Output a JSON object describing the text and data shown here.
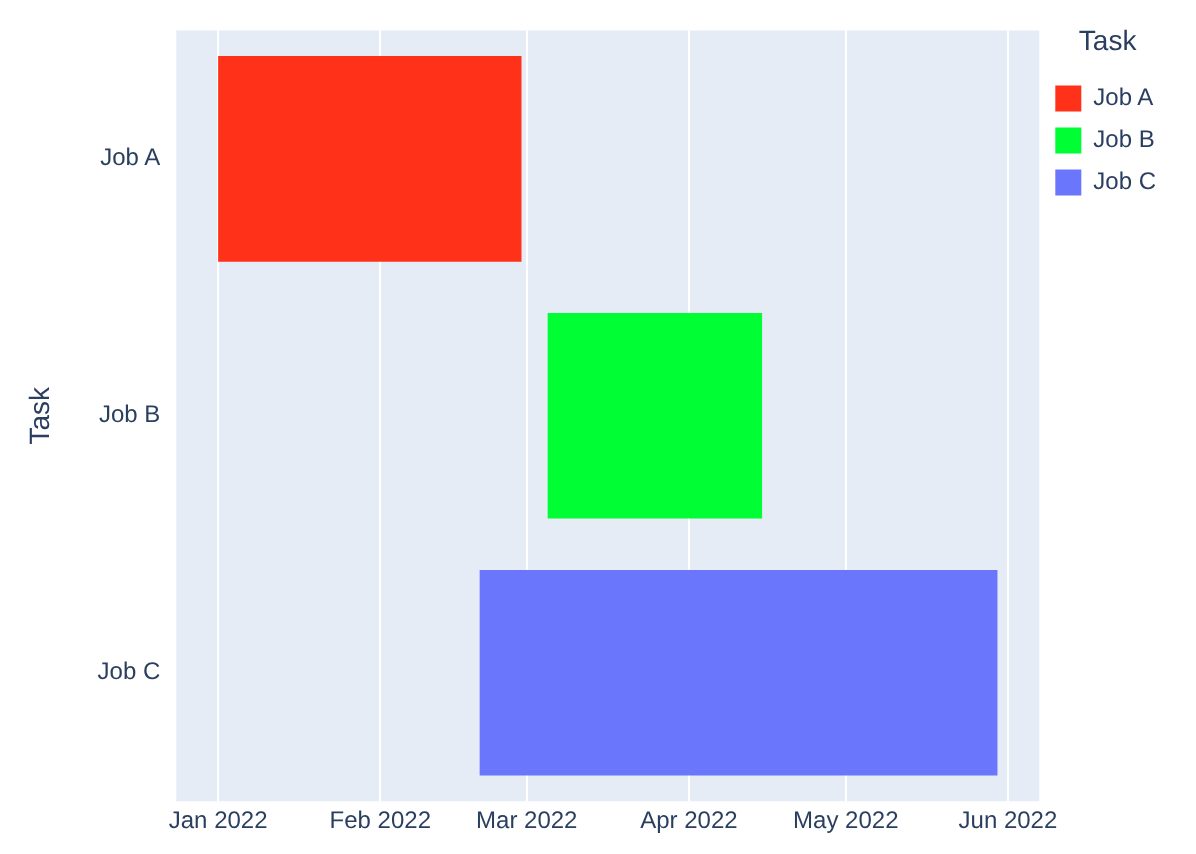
{
  "chart_data": {
    "type": "bar",
    "orientation": "horizontal",
    "ylabel": "Task",
    "legend_title": "Task",
    "legend": "top right",
    "grid": "x",
    "categories": [
      "Job A",
      "Job B",
      "Job C"
    ],
    "series": [
      {
        "name": "Job A",
        "color": "#ff3219",
        "values": [
          58,
          null,
          null
        ],
        "base": [
          18993,
          null,
          null
        ]
      },
      {
        "name": "Job B",
        "color": "#00fe35",
        "values": [
          null,
          41,
          null
        ],
        "base": [
          null,
          19056,
          null
        ]
      },
      {
        "name": "Job C",
        "color": "#6a76fc",
        "values": [
          null,
          null,
          99
        ],
        "base": [
          null,
          null,
          19043
        ]
      }
    ],
    "xlim": [
      "2021-12-24",
      "2022-06-07"
    ],
    "xticks": [
      {
        "value": "2022-01-01",
        "label": "Jan 2022"
      },
      {
        "value": "2022-02-01",
        "label": "Feb 2022"
      },
      {
        "value": "2022-03-01",
        "label": "Mar 2022"
      },
      {
        "value": "2022-04-01",
        "label": "Apr 2022"
      },
      {
        "value": "2022-05-01",
        "label": "May 2022"
      },
      {
        "value": "2022-06-01",
        "label": "Jun 2022"
      }
    ]
  }
}
